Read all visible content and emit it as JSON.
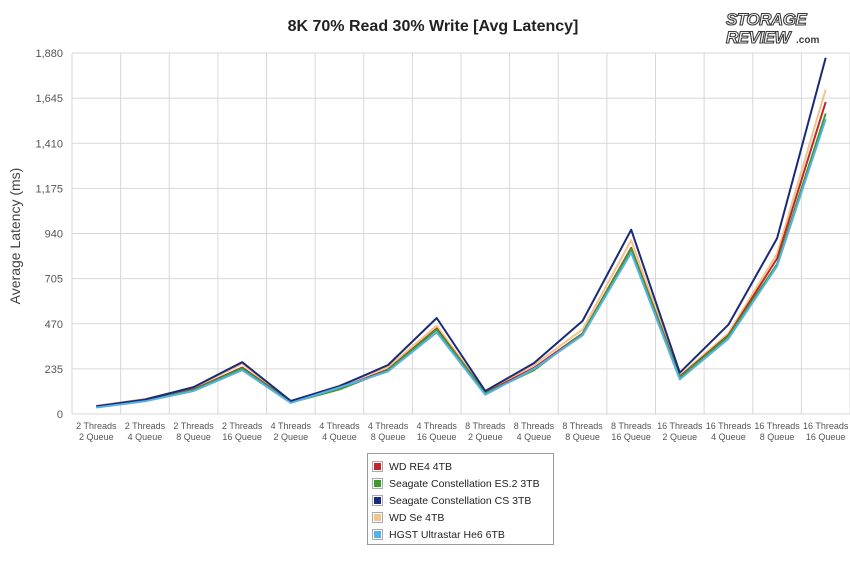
{
  "colors": {
    "wd_re4": "#c0252b",
    "es2": "#3d9b2a",
    "cs": "#1b2a78",
    "wd_se": "#f0c48a",
    "hgst": "#55b2e6",
    "grid": "#d7d7d7",
    "brand": "#3a3a3a"
  },
  "brand_text": {
    "line1": "STORAGE",
    "line2": "REVIEW",
    "suffix": ".com"
  },
  "chart_data": {
    "type": "line",
    "title": "8K 70% Read 30% Write [Avg Latency]",
    "xlabel": "",
    "ylabel": "Average Latency (ms)",
    "ylim": [
      0,
      1880
    ],
    "yticks": [
      "0",
      "235",
      "470",
      "705",
      "940",
      "1,175",
      "1,410",
      "1,645",
      "1,880"
    ],
    "grid": true,
    "legend_position": "bottom",
    "categories": [
      [
        "2 Threads",
        "2 Queue"
      ],
      [
        "2 Threads",
        "4 Queue"
      ],
      [
        "2 Threads",
        "8 Queue"
      ],
      [
        "2 Threads",
        "16 Queue"
      ],
      [
        "4 Threads",
        "2 Queue"
      ],
      [
        "4 Threads",
        "4 Queue"
      ],
      [
        "4 Threads",
        "8 Queue"
      ],
      [
        "4 Threads",
        "16 Queue"
      ],
      [
        "8 Threads",
        "2 Queue"
      ],
      [
        "8 Threads",
        "4 Queue"
      ],
      [
        "8 Threads",
        "8 Queue"
      ],
      [
        "8 Threads",
        "16 Queue"
      ],
      [
        "16 Threads",
        "2 Queue"
      ],
      [
        "16 Threads",
        "4 Queue"
      ],
      [
        "16 Threads",
        "8 Queue"
      ],
      [
        "16 Threads",
        "16 Queue"
      ]
    ],
    "series": [
      {
        "name": "WD RE4 4TB",
        "color_key": "wd_re4",
        "values": [
          38,
          70,
          128,
          242,
          62,
          135,
          232,
          445,
          110,
          240,
          420,
          865,
          195,
          410,
          810,
          1625
        ]
      },
      {
        "name": "Seagate Constellation ES.2 3TB",
        "color_key": "es2",
        "values": [
          36,
          68,
          125,
          238,
          60,
          128,
          228,
          440,
          108,
          228,
          418,
          860,
          190,
          405,
          780,
          1565
        ]
      },
      {
        "name": "Seagate Constellation CS 3TB",
        "color_key": "cs",
        "values": [
          40,
          75,
          140,
          270,
          68,
          145,
          255,
          500,
          120,
          265,
          485,
          960,
          215,
          465,
          915,
          1855
        ]
      },
      {
        "name": "WD Se 4TB",
        "color_key": "wd_se",
        "values": [
          42,
          78,
          138,
          262,
          66,
          148,
          245,
          460,
          112,
          255,
          440,
          905,
          200,
          420,
          835,
          1690
        ]
      },
      {
        "name": "HGST Ultrastar He6 6TB",
        "color_key": "hgst",
        "values": [
          34,
          66,
          120,
          228,
          58,
          138,
          222,
          425,
          100,
          235,
          410,
          840,
          180,
          392,
          770,
          1535
        ]
      }
    ]
  }
}
